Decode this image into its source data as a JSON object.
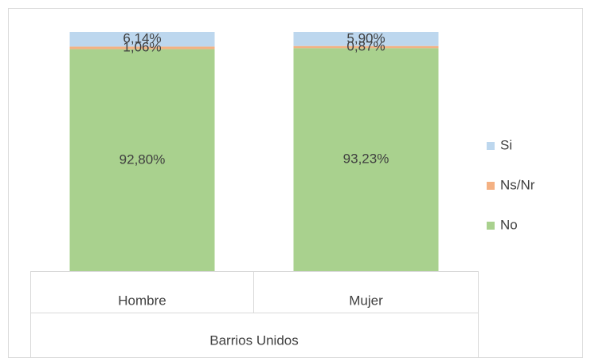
{
  "chart_data": {
    "type": "stacked_bar",
    "categories": [
      "Hombre",
      "Mujer"
    ],
    "group_label": "Barrios Unidos",
    "series": [
      {
        "name": "Si",
        "color": "#bdd7ee",
        "values": [
          6.14,
          5.9
        ],
        "value_labels": [
          "6,14%",
          "5,90%"
        ]
      },
      {
        "name": "Ns/Nr",
        "color": "#f4b183",
        "values": [
          1.06,
          0.87
        ],
        "value_labels": [
          "1,06%",
          "0,87%"
        ]
      },
      {
        "name": "No",
        "color": "#a9d18e",
        "values": [
          92.8,
          93.23
        ],
        "value_labels": [
          "92,80%",
          "93,23%"
        ]
      }
    ],
    "ylim": [
      0,
      100
    ],
    "legend": "right"
  }
}
